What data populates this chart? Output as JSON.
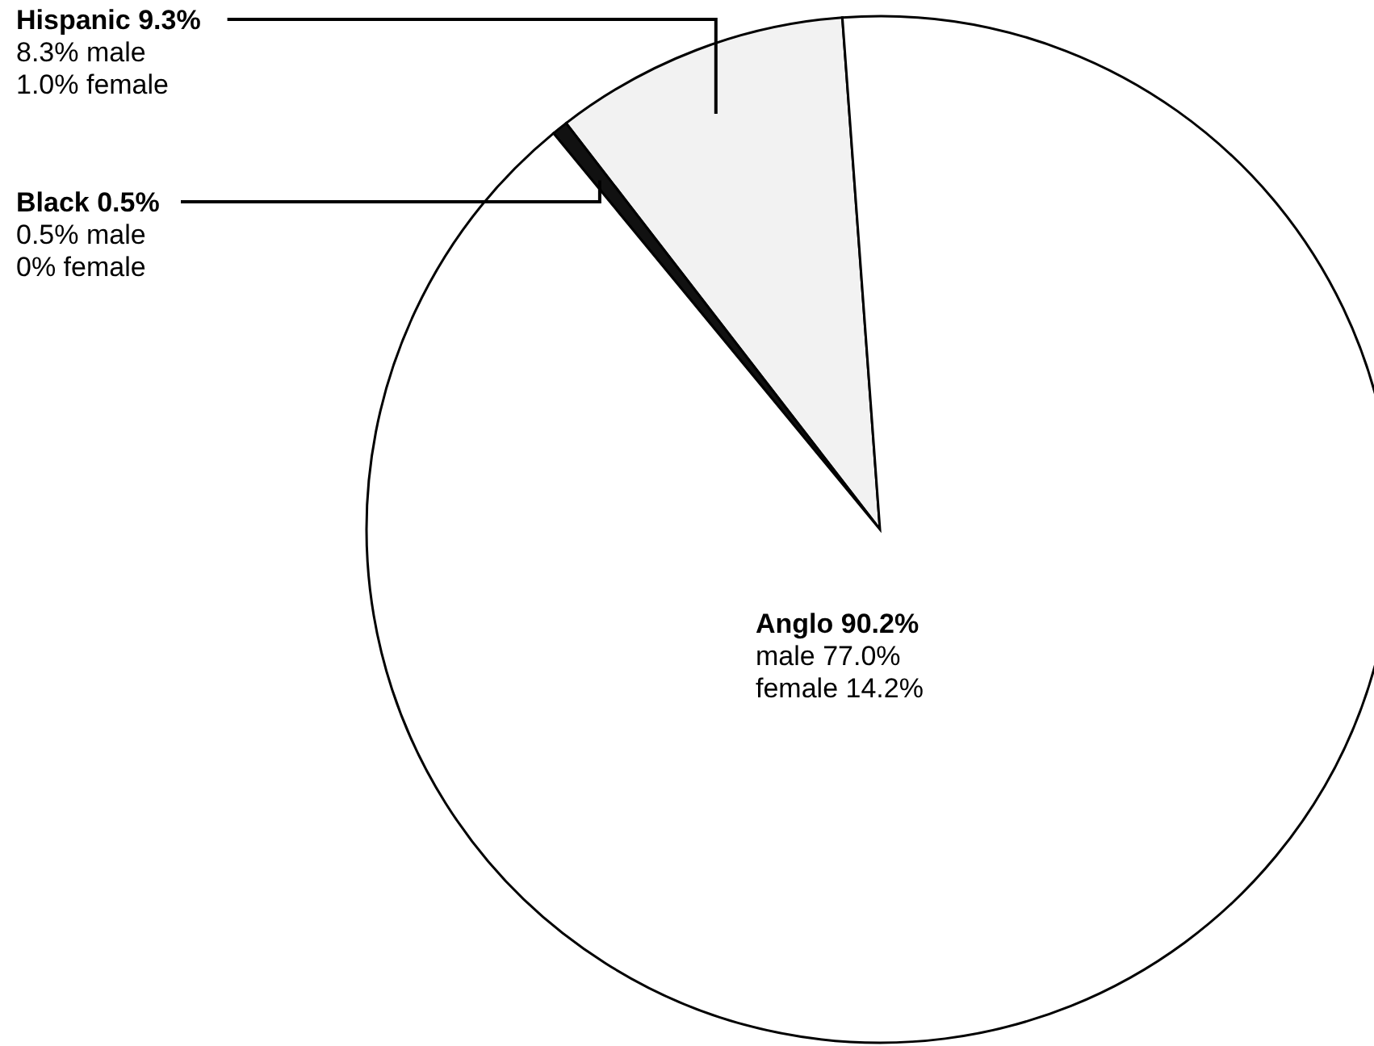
{
  "chart_data": {
    "type": "pie",
    "categories": [
      "Hispanic",
      "Black",
      "Anglo"
    ],
    "values": [
      9.3,
      0.5,
      90.2
    ],
    "colors": [
      "#f2f2f2",
      "#111111",
      "#ffffff"
    ],
    "value_labels": [
      "9.3%",
      "0.5%",
      "90.2%"
    ],
    "annotations": [
      "8.3% male",
      "1.0% female",
      "0.5% male",
      "0% female",
      "male 77.0%",
      "female 14.2%"
    ]
  }
}
